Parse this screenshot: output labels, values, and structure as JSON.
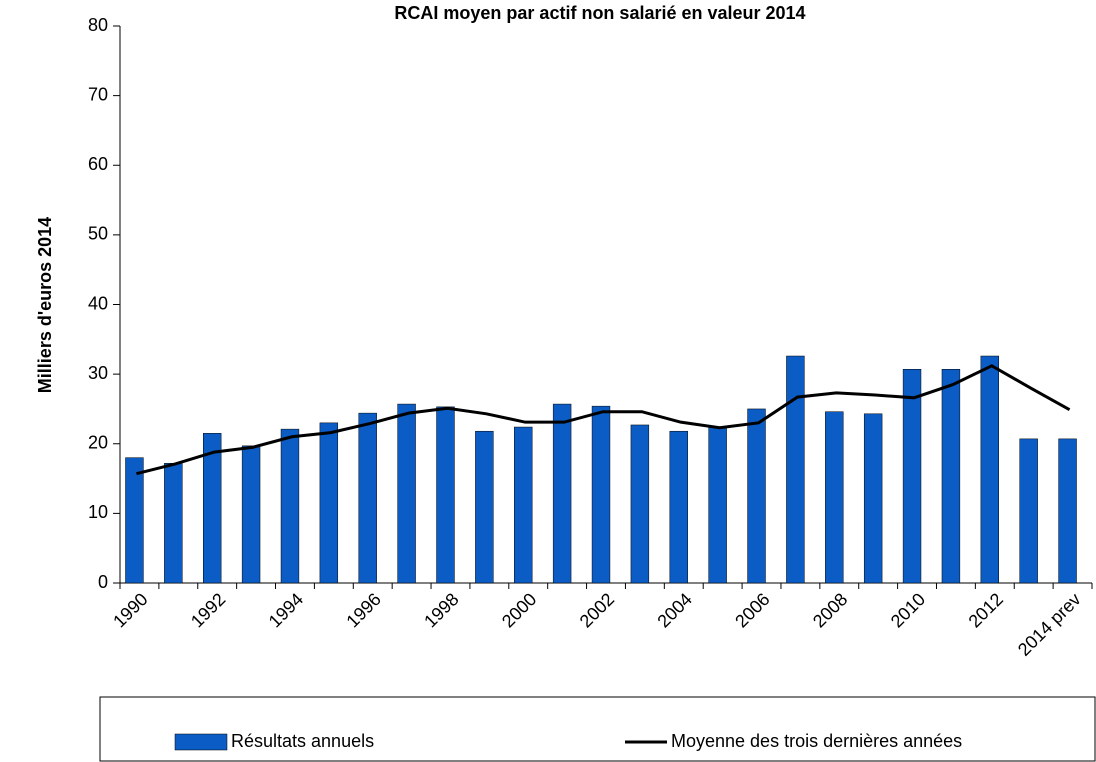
{
  "chart_data": {
    "type": "bar_line",
    "title": "RCAI moyen par actif non salarié en valeur 2014",
    "y_label": "Milliers d'euros 2014",
    "categories": [
      "1990",
      null,
      "1992",
      null,
      "1994",
      null,
      "1996",
      null,
      "1998",
      null,
      "2000",
      null,
      "2002",
      null,
      "2004",
      null,
      "2006",
      null,
      "2008",
      null,
      "2010",
      null,
      "2012",
      null,
      "2014 prev"
    ],
    "series": [
      {
        "name": "Résultats annuels",
        "color": "#0b5cc4",
        "kind": "bar",
        "values": [
          18.0,
          17.2,
          21.5,
          19.7,
          22.1,
          23.0,
          24.4,
          25.7,
          25.3,
          21.8,
          22.4,
          25.7,
          25.4,
          22.7,
          21.8,
          22.4,
          25.0,
          32.6,
          24.6,
          24.3,
          30.7,
          30.7,
          32.6,
          20.7,
          20.7
        ]
      },
      {
        "name": "Moyenne des trois dernières années",
        "color": "#000000",
        "kind": "line",
        "values": [
          15.7,
          17.1,
          18.8,
          19.5,
          21.0,
          21.6,
          22.9,
          24.4,
          25.1,
          24.3,
          23.1,
          23.1,
          24.6,
          24.6,
          23.1,
          22.3,
          23.0,
          26.7,
          27.3,
          27.0,
          26.6,
          28.5,
          31.2,
          28.0,
          24.9
        ]
      }
    ],
    "ylim": [
      0,
      80
    ],
    "yticks": [
      0,
      10,
      20,
      30,
      40,
      50,
      60,
      70,
      80
    ]
  }
}
